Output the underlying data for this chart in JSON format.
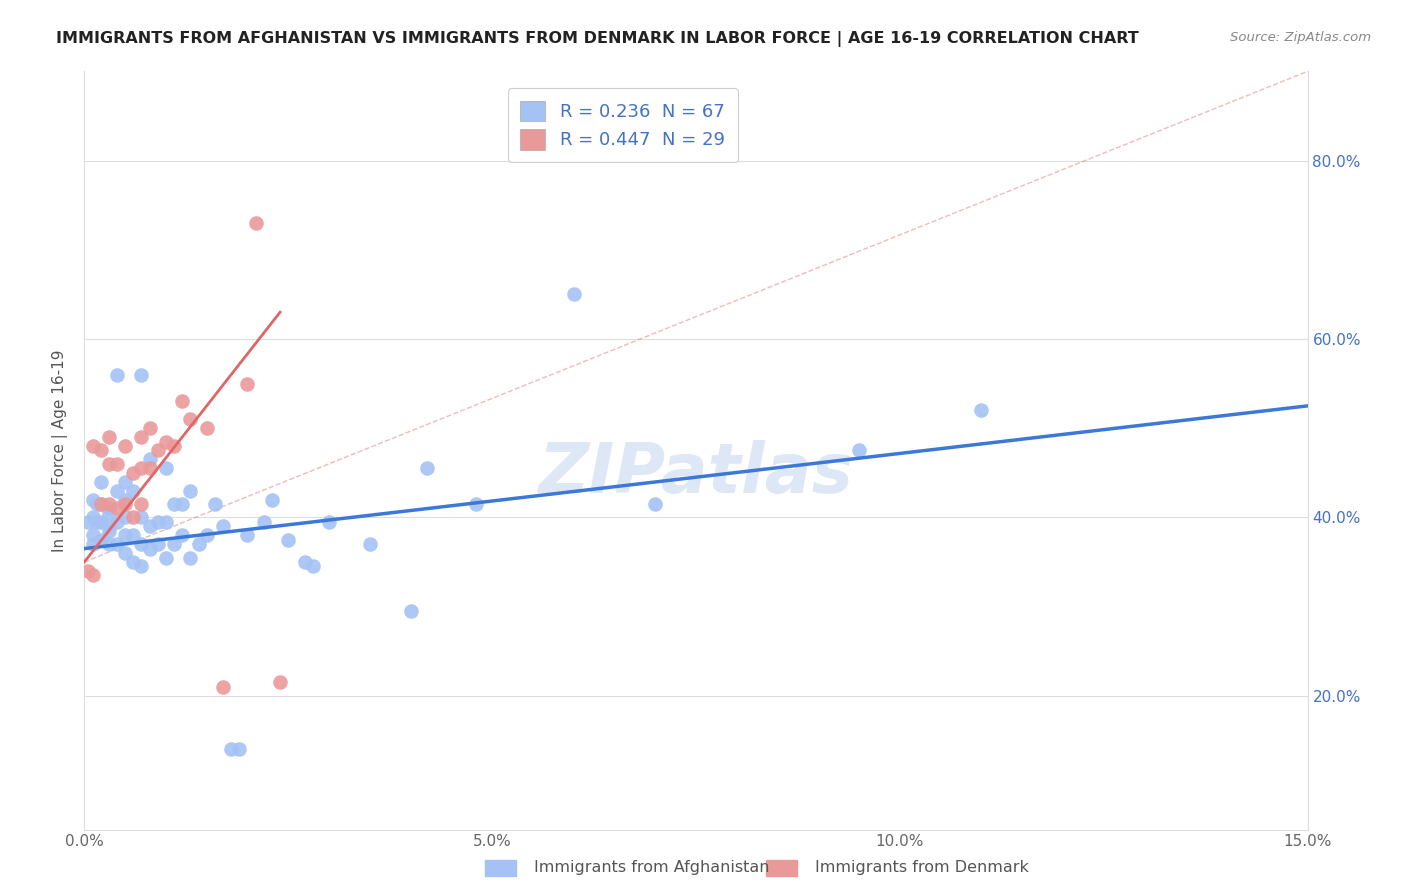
{
  "title": "IMMIGRANTS FROM AFGHANISTAN VS IMMIGRANTS FROM DENMARK IN LABOR FORCE | AGE 16-19 CORRELATION CHART",
  "source": "Source: ZipAtlas.com",
  "ylabel": "In Labor Force | Age 16-19",
  "xlim": [
    0.0,
    0.15
  ],
  "ylim": [
    0.05,
    0.9
  ],
  "watermark": "ZIPatlas",
  "blue_color": "#a4c2f4",
  "pink_color": "#ea9999",
  "blue_line_color": "#3c78d8",
  "pink_line_color": "#e06666",
  "dash_color": "#e06666",
  "legend_label_1": "R = 0.236  N = 67",
  "legend_label_2": "R = 0.447  N = 29",
  "legend_color": "#4472c4",
  "bottom_label_1": "Immigrants from Afghanistan",
  "bottom_label_2": "Immigrants from Denmark",
  "afghanistan_x": [
    0.0005,
    0.001,
    0.001,
    0.001,
    0.001,
    0.0015,
    0.0015,
    0.002,
    0.002,
    0.002,
    0.002,
    0.003,
    0.003,
    0.003,
    0.003,
    0.003,
    0.004,
    0.004,
    0.004,
    0.004,
    0.005,
    0.005,
    0.005,
    0.005,
    0.005,
    0.006,
    0.006,
    0.006,
    0.007,
    0.007,
    0.007,
    0.007,
    0.008,
    0.008,
    0.008,
    0.009,
    0.009,
    0.01,
    0.01,
    0.01,
    0.011,
    0.011,
    0.012,
    0.012,
    0.013,
    0.013,
    0.014,
    0.015,
    0.016,
    0.017,
    0.018,
    0.019,
    0.02,
    0.022,
    0.023,
    0.025,
    0.027,
    0.028,
    0.03,
    0.035,
    0.04,
    0.042,
    0.048,
    0.06,
    0.07,
    0.095,
    0.11
  ],
  "afghanistan_y": [
    0.395,
    0.38,
    0.4,
    0.42,
    0.37,
    0.395,
    0.415,
    0.375,
    0.395,
    0.415,
    0.44,
    0.37,
    0.39,
    0.41,
    0.385,
    0.405,
    0.37,
    0.395,
    0.43,
    0.56,
    0.36,
    0.38,
    0.4,
    0.42,
    0.44,
    0.35,
    0.38,
    0.43,
    0.345,
    0.37,
    0.4,
    0.56,
    0.365,
    0.39,
    0.465,
    0.37,
    0.395,
    0.355,
    0.395,
    0.455,
    0.37,
    0.415,
    0.38,
    0.415,
    0.355,
    0.43,
    0.37,
    0.38,
    0.415,
    0.39,
    0.14,
    0.14,
    0.38,
    0.395,
    0.42,
    0.375,
    0.35,
    0.345,
    0.395,
    0.37,
    0.295,
    0.455,
    0.415,
    0.65,
    0.415,
    0.475,
    0.52
  ],
  "denmark_x": [
    0.0005,
    0.001,
    0.001,
    0.002,
    0.002,
    0.003,
    0.003,
    0.003,
    0.004,
    0.004,
    0.005,
    0.005,
    0.006,
    0.006,
    0.007,
    0.007,
    0.007,
    0.008,
    0.008,
    0.009,
    0.01,
    0.011,
    0.012,
    0.013,
    0.015,
    0.017,
    0.02,
    0.021,
    0.024
  ],
  "denmark_y": [
    0.34,
    0.335,
    0.48,
    0.415,
    0.475,
    0.415,
    0.46,
    0.49,
    0.41,
    0.46,
    0.415,
    0.48,
    0.4,
    0.45,
    0.415,
    0.455,
    0.49,
    0.455,
    0.5,
    0.475,
    0.485,
    0.48,
    0.53,
    0.51,
    0.5,
    0.21,
    0.55,
    0.73,
    0.215
  ],
  "blue_line_x0": 0.0,
  "blue_line_y0": 0.365,
  "blue_line_x1": 0.15,
  "blue_line_y1": 0.525,
  "pink_line_x0": 0.0,
  "pink_line_y0": 0.35,
  "pink_line_x1": 0.024,
  "pink_line_y1": 0.63,
  "dash_line_x0": 0.0,
  "dash_line_y0": 0.35,
  "dash_line_x1": 0.15,
  "dash_line_y1": 0.9
}
